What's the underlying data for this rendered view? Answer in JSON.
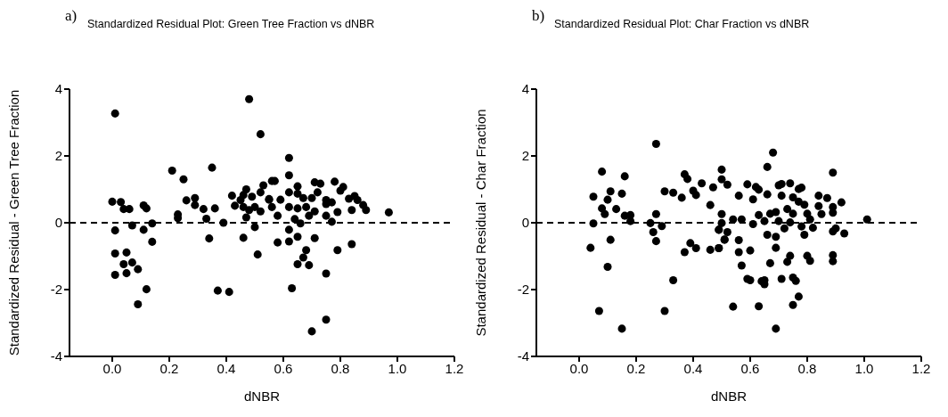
{
  "chart_data": [
    {
      "type": "scatter",
      "title": "Standardized Residual Plot: Green Tree Fraction vs dNBR",
      "annotations": [
        "a)"
      ],
      "xlabel": "dNBR",
      "ylabel": "Standardized Residual - Green Tree Fraction",
      "marker": "circle",
      "grid": false,
      "xlim": [
        -0.15,
        1.2
      ],
      "xticks": [
        {
          "value": 0,
          "label": "0.0"
        },
        {
          "value": 0.2,
          "label": "0.2"
        },
        {
          "value": 0.4,
          "label": "0.4"
        },
        {
          "value": 0.6,
          "label": "0.6"
        },
        {
          "value": 0.8,
          "label": "0.8"
        },
        {
          "value": 1,
          "label": "1.0"
        },
        {
          "value": 1.2,
          "label": "1.2"
        }
      ],
      "ylim": [
        -4,
        4
      ],
      "yticks": [
        -4,
        -2,
        0,
        2,
        4
      ],
      "ref_lines": [
        {
          "axis": "y",
          "value": 0,
          "line_style": "dashed",
          "color": "#000000"
        }
      ],
      "series": [
        {
          "color": "#000000",
          "x": [
            0.01,
            0.48,
            0.52,
            0.21,
            0.25,
            0.35,
            0.0,
            0.03,
            0.04,
            0.06,
            0.11,
            0.12,
            0.01,
            0.07,
            0.11,
            0.14,
            0.14,
            0.01,
            0.05,
            0.04,
            0.07,
            0.05,
            0.01,
            0.09,
            0.12,
            0.09,
            0.23,
            0.23,
            0.26,
            0.29,
            0.29,
            0.32,
            0.33,
            0.36,
            0.34,
            0.39,
            0.37,
            0.41,
            0.42,
            0.43,
            0.45,
            0.46,
            0.47,
            0.49,
            0.46,
            0.48,
            0.47,
            0.46,
            0.5,
            0.51,
            0.5,
            0.52,
            0.52,
            0.53,
            0.55,
            0.56,
            0.62,
            0.62,
            0.57,
            0.65,
            0.71,
            0.73,
            0.78,
            0.81,
            0.8,
            0.55,
            0.59,
            0.62,
            0.65,
            0.67,
            0.7,
            0.72,
            0.75,
            0.77,
            0.83,
            0.85,
            0.86,
            0.88,
            0.89,
            0.84,
            0.79,
            0.97,
            0.56,
            0.58,
            0.62,
            0.65,
            0.68,
            0.71,
            0.75,
            0.64,
            0.66,
            0.69,
            0.75,
            0.77,
            0.62,
            0.58,
            0.62,
            0.65,
            0.71,
            0.84,
            0.79,
            0.68,
            0.67,
            0.65,
            0.69,
            0.75,
            0.63,
            0.75,
            0.7
          ],
          "values": [
            3.27,
            3.7,
            2.65,
            1.56,
            1.3,
            1.65,
            0.63,
            0.62,
            0.41,
            0.41,
            0.52,
            0.43,
            -0.23,
            -0.08,
            -0.21,
            -0.02,
            -0.57,
            -0.92,
            -0.89,
            -1.24,
            -1.19,
            -1.51,
            -1.56,
            -1.39,
            -1.99,
            -2.44,
            0.25,
            0.14,
            0.67,
            0.74,
            0.53,
            0.41,
            0.12,
            0.43,
            -0.47,
            0.0,
            -2.03,
            -2.07,
            0.81,
            0.51,
            0.68,
            0.83,
            1.0,
            0.78,
            0.47,
            0.38,
            0.16,
            -0.45,
            -0.13,
            -0.95,
            0.47,
            0.34,
            0.91,
            1.12,
            0.69,
            1.25,
            1.94,
            1.42,
            1.25,
            1.09,
            1.21,
            1.17,
            1.23,
            1.07,
            0.96,
            0.71,
            0.69,
            0.91,
            0.87,
            0.74,
            0.74,
            0.91,
            0.68,
            0.61,
            0.72,
            0.8,
            0.68,
            0.53,
            0.38,
            0.38,
            0.32,
            0.31,
            0.47,
            0.21,
            0.47,
            0.43,
            0.47,
            0.34,
            0.56,
            0.11,
            -0.02,
            0.21,
            0.21,
            0.03,
            -0.21,
            -0.59,
            -0.56,
            -0.42,
            -0.46,
            -0.64,
            -0.82,
            -0.82,
            -1.04,
            -1.24,
            -1.27,
            -1.52,
            -1.96,
            -2.9,
            -3.25
          ]
        }
      ]
    },
    {
      "type": "scatter",
      "title": "Standardized Residual Plot: Char Fraction vs dNBR",
      "annotations": [
        "b)"
      ],
      "xlabel": "dNBR",
      "ylabel": "Standardized Residual - Char Fraction",
      "marker": "circle",
      "grid": false,
      "xlim": [
        -0.15,
        1.2
      ],
      "xticks": [
        {
          "value": 0,
          "label": "0.0"
        },
        {
          "value": 0.2,
          "label": "0.2"
        },
        {
          "value": 0.4,
          "label": "0.4"
        },
        {
          "value": 0.6,
          "label": "0.6"
        },
        {
          "value": 0.8,
          "label": "0.8"
        },
        {
          "value": 1,
          "label": "1.0"
        },
        {
          "value": 1.2,
          "label": "1.2"
        }
      ],
      "ylim": [
        -4,
        4
      ],
      "yticks": [
        -4,
        -2,
        0,
        2,
        4
      ],
      "ref_lines": [
        {
          "axis": "y",
          "value": 0,
          "line_style": "dashed",
          "color": "#000000"
        }
      ],
      "series": [
        {
          "color": "#000000",
          "x": [
            0.27,
            0.08,
            0.16,
            0.05,
            0.11,
            0.1,
            0.15,
            0.08,
            0.09,
            0.13,
            0.16,
            0.18,
            0.18,
            0.05,
            0.04,
            0.11,
            0.1,
            0.07,
            0.15,
            0.27,
            0.25,
            0.26,
            0.27,
            0.29,
            0.3,
            0.33,
            0.36,
            0.37,
            0.38,
            0.4,
            0.41,
            0.43,
            0.47,
            0.5,
            0.5,
            0.46,
            0.5,
            0.5,
            0.49,
            0.51,
            0.37,
            0.39,
            0.41,
            0.46,
            0.49,
            0.33,
            0.3,
            0.68,
            0.66,
            0.89,
            0.52,
            0.59,
            0.62,
            0.63,
            0.7,
            0.71,
            0.74,
            0.77,
            0.78,
            0.56,
            0.61,
            0.66,
            0.71,
            0.75,
            0.77,
            0.79,
            0.84,
            0.87,
            0.84,
            0.89,
            0.92,
            0.89,
            0.85,
            0.8,
            0.54,
            0.57,
            0.63,
            0.67,
            0.69,
            0.73,
            0.75,
            0.81,
            1.01,
            0.65,
            0.7,
            0.74,
            0.61,
            0.72,
            0.78,
            0.82,
            0.49,
            0.52,
            0.9,
            0.89,
            0.93,
            0.79,
            0.66,
            0.69,
            0.51,
            0.56,
            0.69,
            0.49,
            0.56,
            0.6,
            0.74,
            0.73,
            0.8,
            0.81,
            0.89,
            0.89,
            0.57,
            0.67,
            0.59,
            0.6,
            0.64,
            0.65,
            0.65,
            0.71,
            0.75,
            0.76,
            0.77,
            0.54,
            0.63,
            0.75,
            0.69
          ],
          "values": [
            2.36,
            1.53,
            1.39,
            0.78,
            0.94,
            0.69,
            0.87,
            0.43,
            0.26,
            0.41,
            0.21,
            0.23,
            0.05,
            -0.02,
            -0.75,
            -0.51,
            -1.32,
            -2.64,
            -3.17,
            0.26,
            -0.01,
            -0.28,
            -0.55,
            -0.1,
            0.94,
            0.9,
            0.75,
            1.45,
            1.31,
            0.96,
            0.83,
            1.18,
            1.06,
            1.59,
            1.3,
            0.53,
            0.26,
            -0.01,
            -0.21,
            -0.51,
            -0.88,
            -0.61,
            -0.76,
            -0.81,
            -0.76,
            -1.72,
            -2.64,
            2.1,
            1.67,
            1.5,
            1.14,
            1.15,
            1.07,
            0.99,
            1.12,
            1.16,
            1.18,
            1.01,
            1.05,
            0.81,
            0.7,
            0.85,
            0.81,
            0.76,
            0.63,
            0.54,
            0.81,
            0.74,
            0.5,
            0.47,
            0.61,
            0.3,
            0.26,
            0.27,
            0.1,
            0.1,
            0.23,
            0.27,
            0.32,
            0.41,
            0.27,
            0.1,
            0.1,
            0.05,
            0.05,
            0.01,
            -0.04,
            -0.17,
            -0.11,
            -0.15,
            -0.21,
            -0.28,
            -0.17,
            -0.26,
            -0.32,
            -0.36,
            -0.36,
            -0.42,
            -0.5,
            -0.52,
            -0.75,
            -0.76,
            -0.88,
            -0.83,
            -0.99,
            -1.17,
            -0.99,
            -1.14,
            -0.97,
            -1.15,
            -1.28,
            -1.21,
            -1.68,
            -1.72,
            -1.75,
            -1.72,
            -1.84,
            -1.68,
            -1.64,
            -1.74,
            -2.21,
            -2.51,
            -2.5,
            -2.46,
            -3.17
          ]
        }
      ]
    }
  ]
}
